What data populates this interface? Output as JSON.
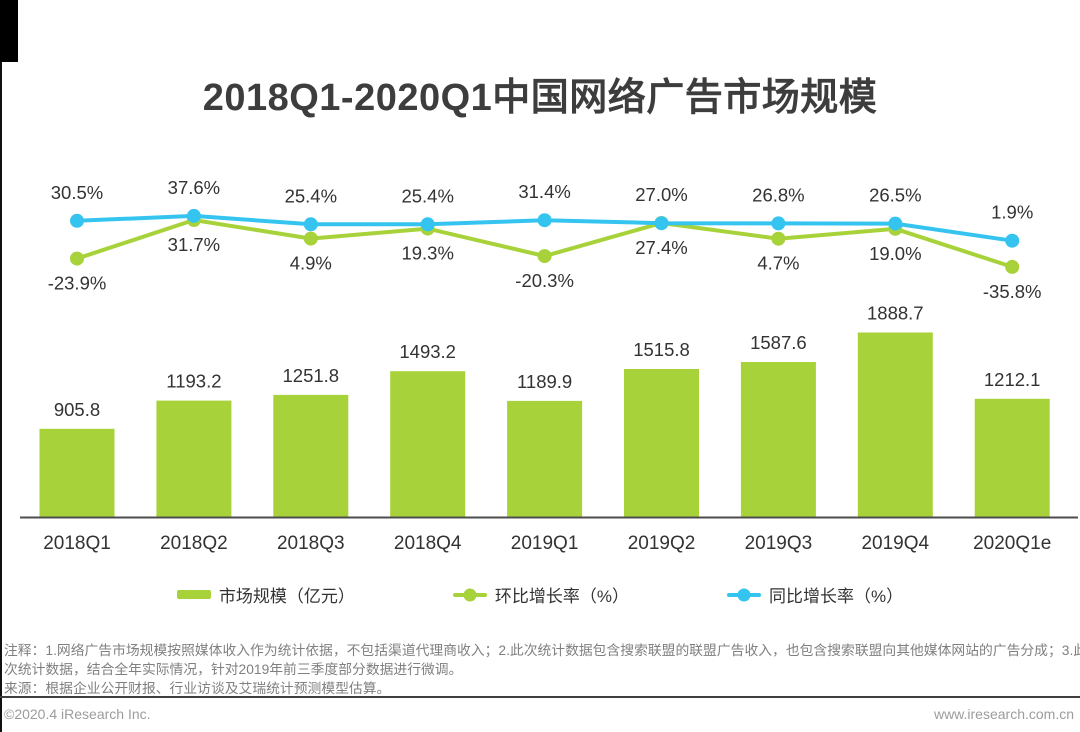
{
  "title": "2018Q1-2020Q1中国网络广告市场规模",
  "chart_data": {
    "type": "bar",
    "subtype": "combo-bar-line",
    "title": "2018Q1-2020Q1中国网络广告市场规模",
    "categories": [
      "2018Q1",
      "2018Q2",
      "2018Q3",
      "2018Q4",
      "2019Q1",
      "2019Q2",
      "2019Q3",
      "2019Q4",
      "2020Q1e"
    ],
    "series": [
      {
        "name": "市场规模（亿元）",
        "kind": "bar",
        "color": "#a8d23a",
        "values": [
          905.8,
          1193.2,
          1251.8,
          1493.2,
          1189.9,
          1515.8,
          1587.6,
          1888.7,
          1212.1
        ]
      },
      {
        "name": "环比增长率（%）",
        "kind": "line",
        "color": "#a8d23a",
        "label_suffix": "%",
        "values": [
          -23.9,
          31.7,
          4.9,
          19.3,
          -20.3,
          27.4,
          4.7,
          19.0,
          -35.8
        ]
      },
      {
        "name": "同比增长率（%）",
        "kind": "line",
        "color": "#35c4f0",
        "label_suffix": "%",
        "values": [
          30.5,
          37.6,
          25.4,
          25.4,
          31.4,
          27.0,
          26.8,
          26.5,
          1.9
        ]
      }
    ],
    "grid": false,
    "value_labels": true,
    "legend_position": "bottom",
    "axis_color": "#4d4d4d"
  },
  "notes": {
    "line1": "注释：1.网络广告市场规模按照媒体收入作为统计依据，不包括渠道代理商收入；2.此次统计数据包含搜索联盟的联盟广告收入，也包含搜索联盟向其他媒体网站的广告分成；3.此",
    "line2": "次统计数据，结合全年实际情况，针对2019年前三季度部分数据进行微调。",
    "source": "来源：根据企业公开财报、行业访谈及艾瑞统计预测模型估算。"
  },
  "footer": {
    "copyright": "©2020.4 iResearch Inc.",
    "website": "www.iresearch.com.cn"
  }
}
